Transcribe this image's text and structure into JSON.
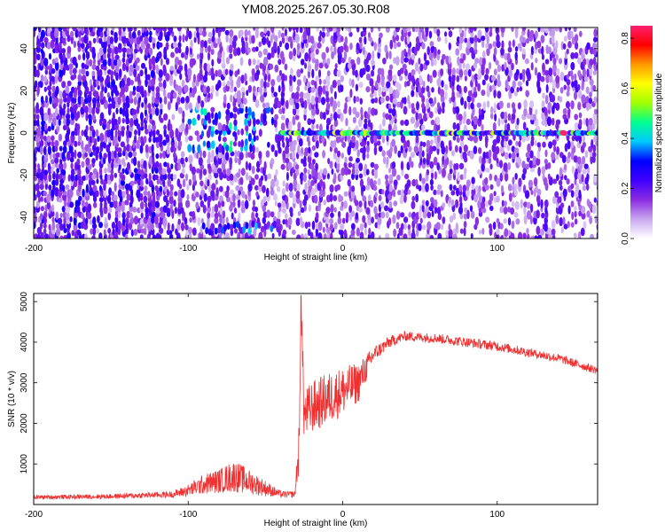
{
  "title": "YM08.2025.267.05.30.R08",
  "chart_data": [
    {
      "type": "heatmap",
      "xlabel": "Height of straight line (km)",
      "ylabel": "Frequency (Hz)",
      "xlim": [
        -200,
        165
      ],
      "ylim": [
        -50,
        50
      ],
      "xticks": [
        -200,
        -100,
        0,
        100
      ],
      "yticks": [
        -40,
        -20,
        0,
        20,
        40
      ],
      "colorbar": {
        "label": "Normalized spectral amplitude",
        "range": [
          0.0,
          0.85
        ],
        "ticks": [
          0.0,
          0.2,
          0.4,
          0.6,
          0.8
        ],
        "colors": [
          "#ffffff",
          "#c9a8f0",
          "#8a2be2",
          "#4000ff",
          "#0000ff",
          "#00c8ff",
          "#00ff90",
          "#a0ff00",
          "#ffff00",
          "#ff9900",
          "#ff0000",
          "#ff2070"
        ]
      },
      "features": [
        {
          "name": "carrier-line",
          "freq_hz": 0,
          "x_range": [
            -40,
            165
          ],
          "amplitude": 0.45
        },
        {
          "name": "low-altitude-burst",
          "freq_range": [
            -10,
            10
          ],
          "x_range": [
            -100,
            -45
          ],
          "amplitude": 0.3
        },
        {
          "name": "peak-spot",
          "x": 143,
          "freq_hz": 0,
          "amplitude": 0.85
        }
      ]
    },
    {
      "type": "line",
      "xlabel": "Height of straight line (km)",
      "ylabel": "SNR (10 * v/v)",
      "xlim": [
        -200,
        165
      ],
      "ylim": [
        0,
        5200
      ],
      "xticks": [
        -200,
        -100,
        0,
        100
      ],
      "yticks": [
        1000,
        2000,
        3000,
        4000,
        5000
      ],
      "color": "#f03030",
      "series": [
        {
          "name": "SNR envelope",
          "x": [
            -200,
            -150,
            -110,
            -100,
            -90,
            -80,
            -70,
            -60,
            -50,
            -40,
            -31,
            -28,
            -27,
            -25,
            -20,
            -10,
            0,
            10,
            20,
            30,
            40,
            60,
            80,
            100,
            120,
            140,
            165
          ],
          "y": [
            180,
            200,
            250,
            350,
            500,
            580,
            700,
            550,
            400,
            250,
            250,
            1500,
            5100,
            2200,
            2400,
            2600,
            2800,
            3000,
            3700,
            4000,
            4150,
            4100,
            4000,
            3900,
            3750,
            3600,
            3300
          ],
          "noise": [
            50,
            60,
            80,
            150,
            250,
            300,
            400,
            300,
            200,
            80,
            80,
            700,
            500,
            600,
            650,
            650,
            600,
            500,
            200,
            150,
            120,
            120,
            120,
            120,
            110,
            110,
            100
          ]
        }
      ]
    }
  ]
}
